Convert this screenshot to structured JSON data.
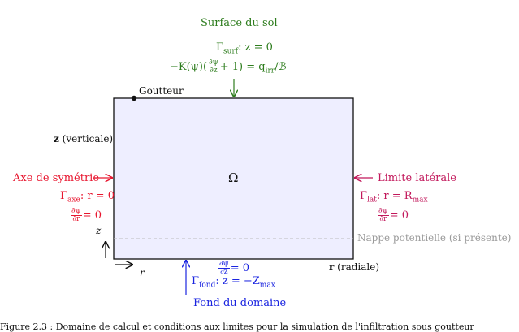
{
  "diagram": {
    "domain_label": "Ω",
    "dripper_label": "Goutteur",
    "vertical_axis_label": "(verticale)",
    "vertical_axis_symbol": "z",
    "radial_axis_label": "(radiale)",
    "radial_axis_symbol": "r",
    "small_z": "z",
    "small_r": "r",
    "top": {
      "title": "Surface du sol",
      "gamma_sub": "surf",
      "condition": ": z = 0",
      "flux_lhs": "−K(ψ)(",
      "flux_frac_num": "∂ψ",
      "flux_frac_den": "∂z",
      "flux_rhs_a": "+ 1) = q",
      "flux_rhs_sub": "irr",
      "flux_rhs_b": "/ℬ"
    },
    "left": {
      "title": "Axe de symétrie",
      "gamma_sub": "axe",
      "condition": ": r = 0",
      "frac_num": "∂ψ",
      "frac_den": "∂r",
      "frac_rhs": "= 0"
    },
    "right": {
      "title": "Limite latérale",
      "gamma_sub": "lat",
      "condition_a": ": r = R",
      "condition_sub": "max",
      "frac_num": "∂ψ",
      "frac_den": "∂r",
      "frac_rhs": "= 0"
    },
    "water_table": "Nappe potentielle (si présente)",
    "bottom": {
      "title": "Fond du domaine",
      "gamma_sub": "fond",
      "condition_a": ": z = −Z",
      "condition_sub": "max",
      "frac_num": "∂ψ",
      "frac_den": "∂z",
      "frac_rhs": "= 0"
    }
  },
  "colors": {
    "top": "#2e7d1e",
    "left": "#e8162f",
    "right": "#c2185b",
    "bottom": "#1a24e0",
    "water_table": "#9a9a9a",
    "domain_fill": "#eeeeff"
  },
  "caption_partial": "Figure 2.3 : Domaine de calcul et conditions aux limites pour la simulation de l'infiltration sous goutteur"
}
